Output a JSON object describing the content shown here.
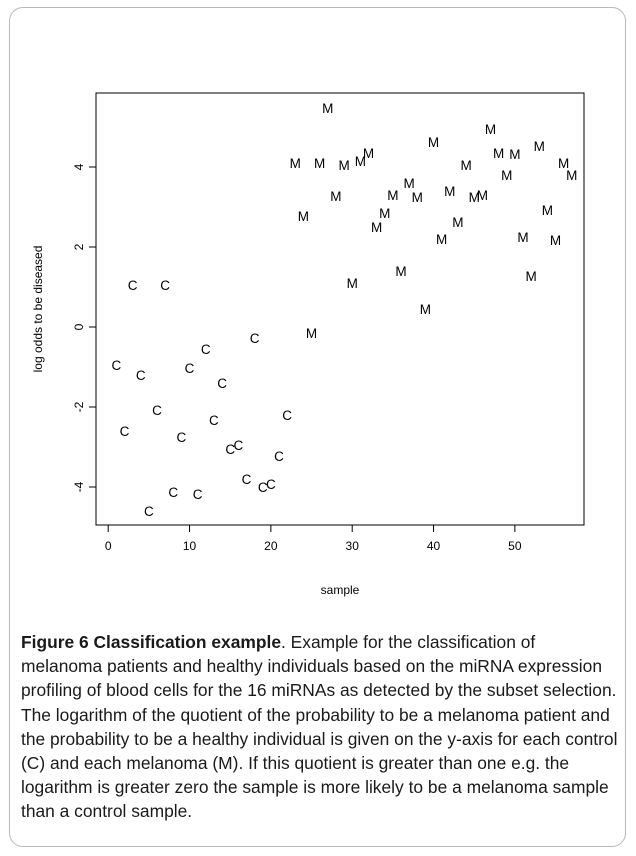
{
  "caption": {
    "title": "Figure 6 Classification example",
    "text": ". Example for the classification of melanoma patients and healthy individuals based on the miRNA expression profiling of blood cells for the 16 miRNAs as detected by the subset selection. The logarithm of the quotient of the probability to be a melanoma patient and the probability to be a healthy individual is given on the y-axis for each control (C) and each melanoma (M). If this quotient is greater than one e.g. the logarithm is greater zero the sample is more likely to be a melanoma sample than a control sample."
  },
  "chart_data": {
    "type": "scatter",
    "title": "",
    "xlabel": "sample",
    "ylabel": "log odds to be diseased",
    "xlim": [
      -1.5,
      58.5
    ],
    "ylim": [
      -4.95,
      5.85
    ],
    "xticks": [
      0,
      10,
      20,
      30,
      40,
      50
    ],
    "yticks": [
      -4,
      -2,
      0,
      2,
      4
    ],
    "grid": false,
    "series": [
      {
        "marker": "C",
        "x": [
          1,
          2,
          3,
          4,
          5,
          6,
          7,
          8,
          9,
          10,
          11,
          12,
          13,
          14,
          15,
          16,
          17,
          18,
          19,
          20,
          21,
          22
        ],
        "y": [
          -0.95,
          -2.6,
          1.05,
          -1.2,
          -4.6,
          -2.08,
          1.05,
          -4.12,
          -2.75,
          -1.02,
          -4.18,
          -0.55,
          -2.32,
          -1.4,
          -3.05,
          -2.95,
          -3.8,
          -0.27,
          -4.0,
          -3.92,
          -3.22,
          -2.2
        ]
      },
      {
        "marker": "M",
        "x": [
          23,
          24,
          25,
          26,
          27,
          28,
          29,
          30,
          31,
          32,
          33,
          34,
          35,
          36,
          37,
          38,
          39,
          40,
          41,
          42,
          43,
          44,
          45,
          46,
          47,
          48,
          49,
          50,
          51,
          52,
          53,
          54,
          55,
          56,
          57
        ],
        "y": [
          4.1,
          2.77,
          -0.15,
          4.1,
          5.48,
          3.28,
          4.05,
          1.1,
          4.15,
          4.35,
          2.5,
          2.85,
          3.3,
          1.4,
          3.6,
          3.25,
          0.45,
          4.62,
          2.2,
          3.4,
          2.62,
          4.05,
          3.25,
          3.3,
          4.95,
          4.35,
          3.8,
          4.33,
          2.25,
          1.27,
          4.52,
          2.93,
          2.18,
          4.1,
          3.8
        ]
      }
    ]
  }
}
